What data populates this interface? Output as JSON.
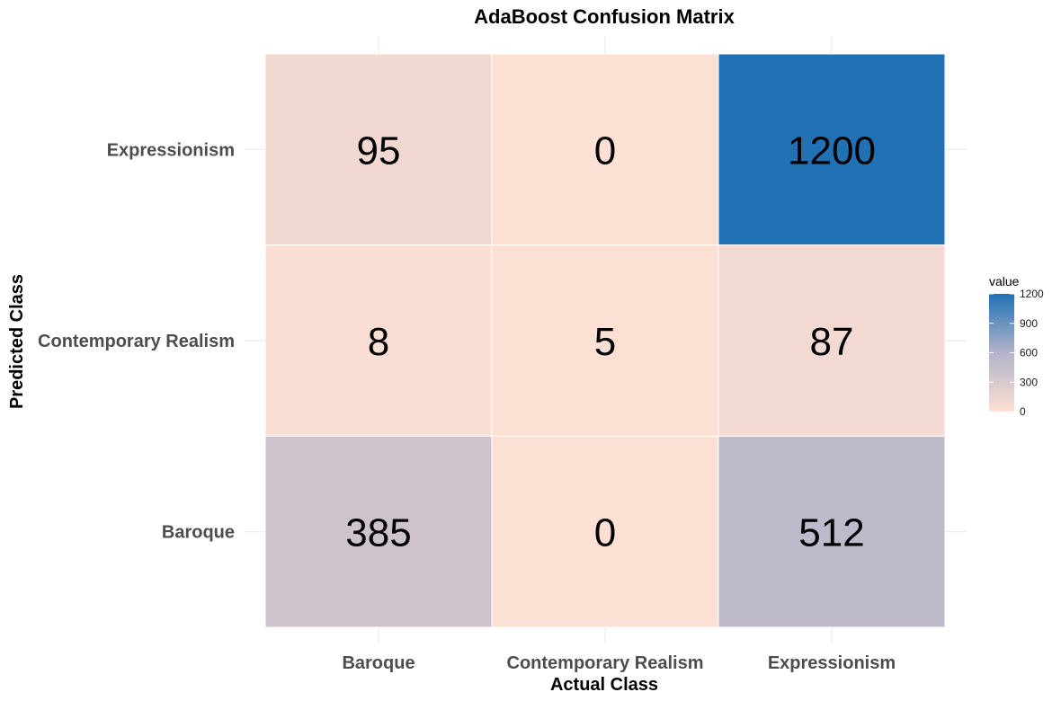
{
  "chart_data": {
    "type": "heatmap",
    "title": "AdaBoost Confusion Matrix",
    "xlabel": "Actual Class",
    "ylabel": "Predicted Class",
    "x_categories": [
      "Baroque",
      "Contemporary Realism",
      "Expressionism"
    ],
    "y_categories": [
      "Baroque",
      "Contemporary Realism",
      "Expressionism"
    ],
    "cells": [
      {
        "x": "Baroque",
        "y": "Expressionism",
        "value": 95
      },
      {
        "x": "Contemporary Realism",
        "y": "Expressionism",
        "value": 0
      },
      {
        "x": "Expressionism",
        "y": "Expressionism",
        "value": 1200
      },
      {
        "x": "Baroque",
        "y": "Contemporary Realism",
        "value": 8
      },
      {
        "x": "Contemporary Realism",
        "y": "Contemporary Realism",
        "value": 5
      },
      {
        "x": "Expressionism",
        "y": "Contemporary Realism",
        "value": 87
      },
      {
        "x": "Baroque",
        "y": "Baroque",
        "value": 385
      },
      {
        "x": "Contemporary Realism",
        "y": "Baroque",
        "value": 0
      },
      {
        "x": "Expressionism",
        "y": "Baroque",
        "value": 512
      }
    ],
    "color_scale": {
      "low": "#fde0d4",
      "mid": "#b3b3c9",
      "high": "#2171b5",
      "domain": [
        0,
        1200
      ]
    },
    "legend": {
      "title": "value",
      "ticks": [
        0,
        300,
        600,
        900,
        1200
      ],
      "placement": "right"
    },
    "grid": true
  }
}
